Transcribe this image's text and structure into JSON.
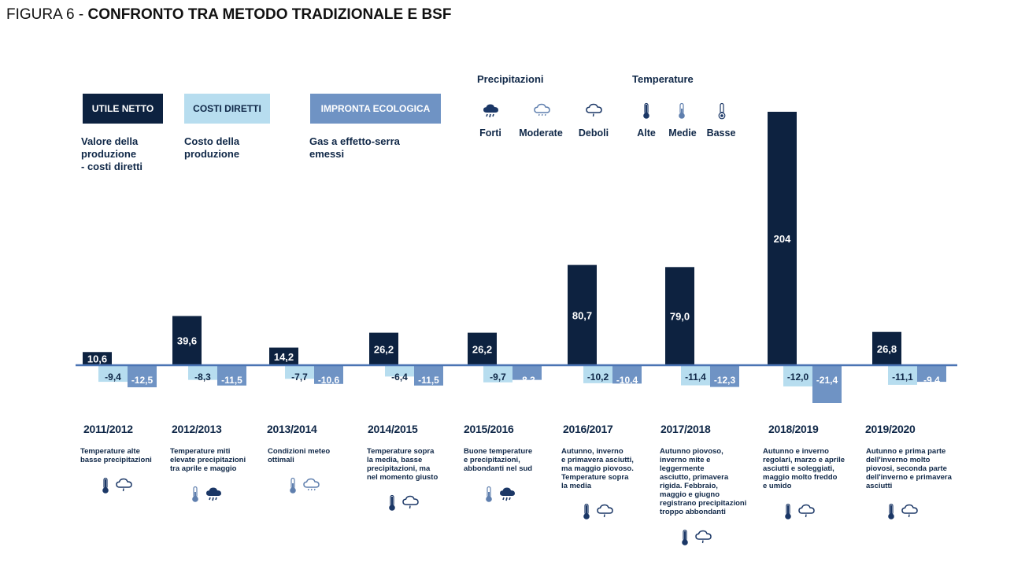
{
  "figure_title": {
    "prefix": "FIGURA 6 - ",
    "main": "CONFRONTO TRA METODO TRADIZIONALE E BSF"
  },
  "colors": {
    "utile": "#0d2240",
    "costi": "#b7ddef",
    "impronta": "#6f93c4",
    "axis": "#4a74b4",
    "text": "#0f2747"
  },
  "legend": {
    "utile": {
      "label": "UTILE NETTO",
      "desc": [
        "Valore della",
        "produzione",
        "- costi diretti"
      ]
    },
    "costi": {
      "label": "COSTI DIRETTI",
      "desc": [
        "Costo della",
        "produzione"
      ]
    },
    "impronta": {
      "label": "IMPRONTA ECOLOGICA",
      "desc": [
        "Gas a effetto-serra",
        "emessi"
      ]
    }
  },
  "weather_legend": {
    "precip_title": "Precipitazioni",
    "temp_title": "Temperature",
    "precip": [
      {
        "label": "Forti",
        "icon": "cloud-heavy-rain-icon"
      },
      {
        "label": "Moderate",
        "icon": "cloud-moderate-rain-icon"
      },
      {
        "label": "Deboli",
        "icon": "cloud-light-rain-icon"
      }
    ],
    "temp": [
      {
        "label": "Alte",
        "icon": "thermometer-high-icon"
      },
      {
        "label": "Medie",
        "icon": "thermometer-medium-icon"
      },
      {
        "label": "Basse",
        "icon": "thermometer-low-icon"
      }
    ]
  },
  "chart_data": {
    "type": "bar",
    "categories": [
      "2011/2012",
      "2012/2013",
      "2013/2014",
      "2014/2015",
      "2015/2016",
      "2016/2017",
      "2017/2018",
      "2018/2019",
      "2019/2020"
    ],
    "series": [
      {
        "name": "UTILE NETTO",
        "values": [
          10.6,
          39.6,
          14.2,
          26.2,
          26.2,
          80.7,
          79.0,
          204,
          26.8
        ],
        "labels": [
          "10,6",
          "39,6",
          "14,2",
          "26,2",
          "26,2",
          "80,7",
          "79,0",
          "204",
          "26,8"
        ]
      },
      {
        "name": "COSTI DIRETTI",
        "values": [
          -9.4,
          -8.3,
          -7.7,
          -6.4,
          -9.7,
          -10.2,
          -11.4,
          -12.0,
          -11.1
        ],
        "labels": [
          "-9,4",
          "-8,3",
          "-7,7",
          "-6,4",
          "-9,7",
          "-10,2",
          "-11,4",
          "-12,0",
          "-11,1"
        ]
      },
      {
        "name": "IMPRONTA ECOLOGICA",
        "values": [
          -12.5,
          -11.5,
          -10.6,
          -11.5,
          -8.3,
          -10.4,
          -12.3,
          -21.4,
          -9.4
        ],
        "labels": [
          "-12,5",
          "-11,5",
          "-10,6",
          "-11,5",
          "-8,3",
          "-10,4",
          "-12,3",
          "-21,4",
          "-9,4"
        ]
      }
    ]
  },
  "seasons": [
    {
      "year": "2011/2012",
      "desc": [
        "Temperature alte",
        "basse precipitazioni"
      ],
      "temp": "high",
      "precip": "light"
    },
    {
      "year": "2012/2013",
      "desc": [
        "Temperature miti",
        "elevate precipitazioni",
        "tra aprile e maggio"
      ],
      "temp": "medium",
      "precip": "heavy"
    },
    {
      "year": "2013/2014",
      "desc": [
        "Condizioni meteo",
        "ottimali"
      ],
      "temp": "medium",
      "precip": "moderate"
    },
    {
      "year": "2014/2015",
      "desc": [
        "Temperature sopra",
        "la media, basse",
        "precipitazioni, ma",
        "nel momento giusto"
      ],
      "temp": "high",
      "precip": "light"
    },
    {
      "year": "2015/2016",
      "desc": [
        "Buone temperature",
        "e precipitazioni,",
        "abbondanti nel sud"
      ],
      "temp": "medium",
      "precip": "heavy"
    },
    {
      "year": "2016/2017",
      "desc": [
        "Autunno, inverno",
        "e primavera asciutti,",
        "ma maggio piovoso.",
        "Temperature sopra",
        "la media"
      ],
      "temp": "high",
      "precip": "light"
    },
    {
      "year": "2017/2018",
      "desc": [
        "Autunno piovoso,",
        "inverno mite e",
        "leggermente",
        "asciutto, primavera",
        "rigida. Febbraio,",
        "maggio e giugno",
        "registrano precipitazioni",
        "troppo abbondanti"
      ],
      "temp": "high",
      "precip": "light"
    },
    {
      "year": "2018/2019",
      "desc": [
        "Autunno e inverno",
        "regolari, marzo e aprile",
        "asciutti e soleggiati,",
        "maggio molto freddo",
        "e umido"
      ],
      "temp": "high",
      "precip": "light"
    },
    {
      "year": "2019/2020",
      "desc": [
        "Autunno e prima parte",
        "dell'inverno molto",
        "piovosi, seconda parte",
        "dell'inverno e primavera",
        "asciutti"
      ],
      "temp": "high",
      "precip": "light"
    }
  ]
}
